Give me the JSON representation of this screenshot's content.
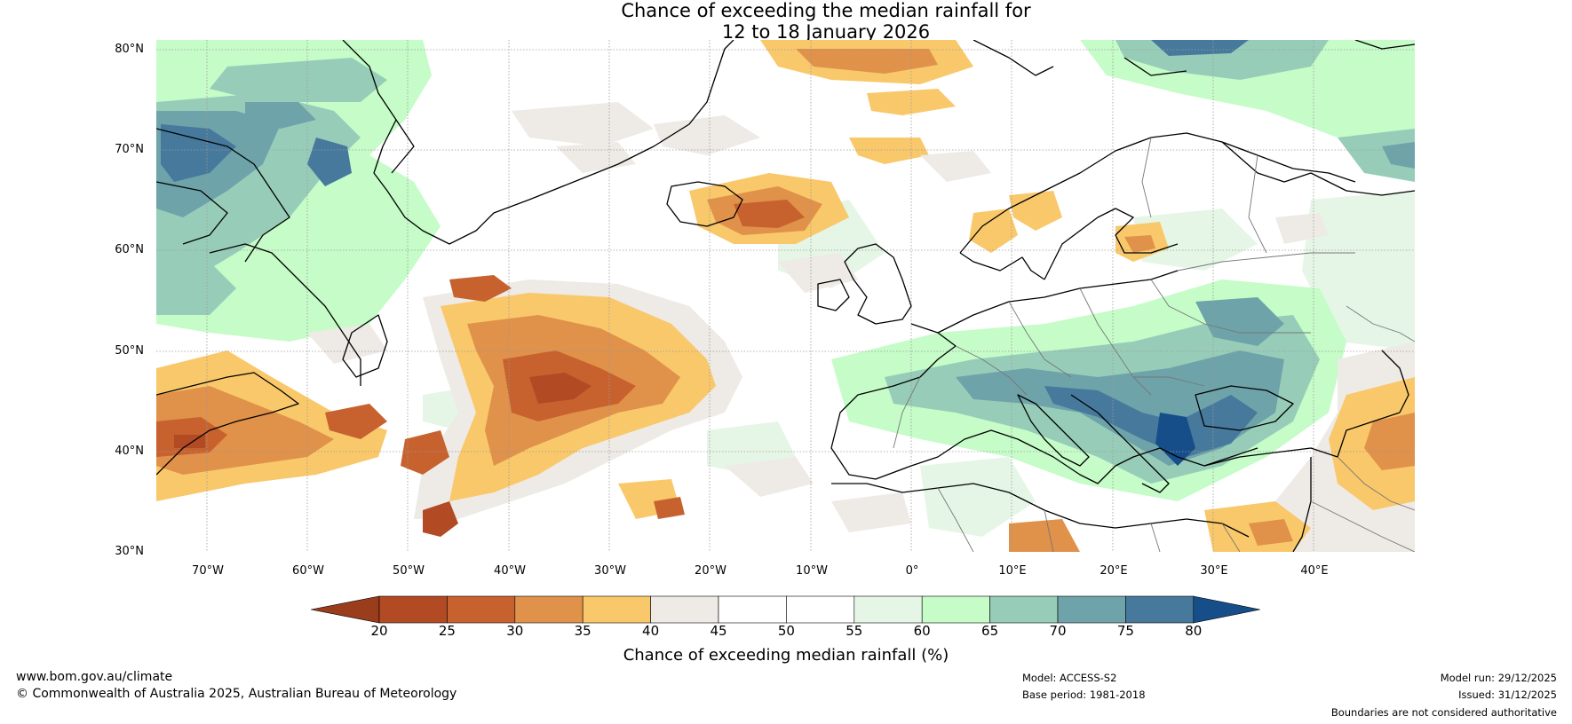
{
  "title": {
    "line1": "Chance of exceeding the median rainfall for",
    "line2": "12 to 18 January 2026"
  },
  "map": {
    "latitude_labels": [
      "80°N",
      "70°N",
      "60°N",
      "50°N",
      "40°N",
      "30°N"
    ],
    "longitude_labels": [
      "70°W",
      "60°W",
      "50°W",
      "40°W",
      "30°W",
      "20°W",
      "10°W",
      "0°",
      "10°E",
      "20°E",
      "30°E",
      "40°E"
    ],
    "extent": {
      "lon_min": -75,
      "lon_max": 50,
      "lat_min": 30,
      "lat_max": 81
    }
  },
  "colorbar": {
    "ticks": [
      "20",
      "25",
      "30",
      "35",
      "40",
      "45",
      "50",
      "55",
      "60",
      "65",
      "70",
      "75",
      "80"
    ],
    "label": "Chance of exceeding median rainfall (%)",
    "colors": {
      "below_20": "#9a3d1c",
      "20-25": "#b24a24",
      "25-30": "#c7622f",
      "30-35": "#e0914a",
      "35-40": "#f9c86a",
      "40-45": "#eeeae6",
      "45-50": "#ffffff",
      "50-55": "#ffffff",
      "55-60": "#e6f6e6",
      "60-65": "#c5fcc8",
      "65-70": "#97cdb8",
      "70-75": "#6ea3aa",
      "75-80": "#47799c",
      "above_80": "#164e8a"
    }
  },
  "footer": {
    "website": "www.bom.gov.au/climate",
    "copyright": "© Commonwealth of Australia 2025, Australian Bureau of Meteorology",
    "model": "Model: ACCESS-S2",
    "base_period": "Base period: 1981-2018",
    "model_run": "Model run: 29/12/2025",
    "issued": "Issued: 31/12/2025",
    "disclaimer": "Boundaries are not considered authoritative"
  }
}
